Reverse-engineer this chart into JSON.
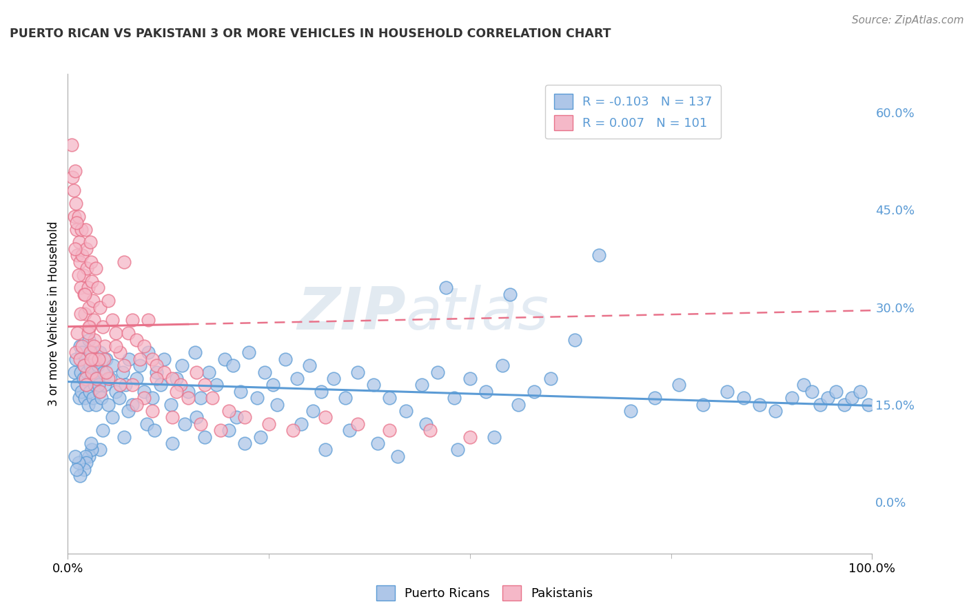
{
  "title": "PUERTO RICAN VS PAKISTANI 3 OR MORE VEHICLES IN HOUSEHOLD CORRELATION CHART",
  "source": "Source: ZipAtlas.com",
  "ylabel": "3 or more Vehicles in Household",
  "watermark_zip": "ZIP",
  "watermark_atlas": "atlas",
  "blue_R": "-0.103",
  "blue_N": "137",
  "pink_R": "0.007",
  "pink_N": "101",
  "blue_fill": "#aec6e8",
  "pink_fill": "#f5b8c8",
  "blue_edge": "#5b9bd5",
  "pink_edge": "#e8728a",
  "blue_line": "#5b9bd5",
  "pink_line": "#e8728a",
  "grid_color": "#cccccc",
  "ytick_color": "#5b9bd5",
  "ytick_values": [
    0.0,
    15.0,
    30.0,
    45.0,
    60.0
  ],
  "ytick_labels": [
    "0.0%",
    "15.0%",
    "30.0%",
    "45.0%",
    "60.0%"
  ],
  "xlim": [
    0.0,
    100.0
  ],
  "ylim": [
    -8.0,
    66.0
  ],
  "blue_line_x": [
    0.0,
    100.0
  ],
  "blue_line_y": [
    18.5,
    14.8
  ],
  "pink_line_x": [
    0.0,
    15.0,
    100.0
  ],
  "pink_line_y": [
    27.0,
    26.5,
    29.5
  ],
  "pink_line_solid_end": 15.0,
  "blue_scatter_x": [
    0.8,
    1.0,
    1.2,
    1.4,
    1.5,
    1.6,
    1.7,
    1.8,
    1.9,
    2.0,
    2.1,
    2.2,
    2.3,
    2.4,
    2.5,
    2.6,
    2.7,
    2.8,
    2.9,
    3.0,
    3.1,
    3.2,
    3.3,
    3.4,
    3.5,
    3.6,
    3.7,
    3.9,
    4.0,
    4.2,
    4.4,
    4.6,
    4.8,
    5.0,
    5.3,
    5.6,
    6.0,
    6.4,
    6.8,
    7.2,
    7.6,
    8.0,
    8.5,
    9.0,
    9.5,
    10.0,
    10.5,
    11.0,
    11.5,
    12.0,
    12.8,
    13.5,
    14.2,
    15.0,
    15.8,
    16.5,
    17.5,
    18.5,
    19.5,
    20.5,
    21.5,
    22.5,
    23.5,
    24.5,
    25.5,
    27.0,
    28.5,
    30.0,
    31.5,
    33.0,
    34.5,
    36.0,
    38.0,
    40.0,
    42.0,
    44.0,
    46.0,
    48.0,
    50.0,
    52.0,
    54.0,
    56.0,
    58.0,
    60.0,
    63.0,
    66.0,
    70.0,
    73.0,
    76.0,
    79.0,
    82.0,
    84.0,
    86.0,
    88.0,
    90.0,
    91.5,
    92.5,
    93.5,
    94.5,
    95.5,
    96.5,
    97.5,
    98.5,
    99.5,
    47.0,
    55.0,
    30.5,
    21.0,
    9.8,
    4.3,
    16.0,
    26.0,
    7.0,
    13.0,
    4.0,
    2.6,
    3.0,
    2.2,
    2.9,
    2.3,
    2.0,
    1.5,
    1.3,
    1.1,
    0.9,
    3.8,
    5.5,
    7.5,
    10.8,
    14.5,
    17.0,
    20.0,
    22.0,
    24.0,
    29.0,
    32.0,
    35.0,
    38.5,
    41.0,
    44.5,
    48.5,
    53.0
  ],
  "blue_scatter_y": [
    20.0,
    22.0,
    18.0,
    16.0,
    24.0,
    20.0,
    17.0,
    23.0,
    19.0,
    21.0,
    16.0,
    22.0,
    18.0,
    20.0,
    15.0,
    25.0,
    17.0,
    21.0,
    19.0,
    23.0,
    16.0,
    20.0,
    18.0,
    22.0,
    15.0,
    19.0,
    21.0,
    17.0,
    23.0,
    16.0,
    20.0,
    18.0,
    22.0,
    15.0,
    19.0,
    21.0,
    17.0,
    16.0,
    20.0,
    18.0,
    22.0,
    15.0,
    19.0,
    21.0,
    17.0,
    23.0,
    16.0,
    20.0,
    18.0,
    22.0,
    15.0,
    19.0,
    21.0,
    17.0,
    23.0,
    16.0,
    20.0,
    18.0,
    22.0,
    21.0,
    17.0,
    23.0,
    16.0,
    20.0,
    18.0,
    22.0,
    19.0,
    21.0,
    17.0,
    19.0,
    16.0,
    20.0,
    18.0,
    16.0,
    14.0,
    18.0,
    20.0,
    16.0,
    19.0,
    17.0,
    21.0,
    15.0,
    17.0,
    19.0,
    25.0,
    38.0,
    14.0,
    16.0,
    18.0,
    15.0,
    17.0,
    16.0,
    15.0,
    14.0,
    16.0,
    18.0,
    17.0,
    15.0,
    16.0,
    17.0,
    15.0,
    16.0,
    17.0,
    15.0,
    33.0,
    32.0,
    14.0,
    13.0,
    12.0,
    11.0,
    13.0,
    15.0,
    10.0,
    9.0,
    8.0,
    7.0,
    8.0,
    7.0,
    9.0,
    6.0,
    5.0,
    4.0,
    6.0,
    5.0,
    7.0,
    18.0,
    13.0,
    14.0,
    11.0,
    12.0,
    10.0,
    11.0,
    9.0,
    10.0,
    12.0,
    8.0,
    11.0,
    9.0,
    7.0,
    12.0,
    8.0,
    10.0
  ],
  "pink_scatter_x": [
    0.5,
    0.6,
    0.7,
    0.8,
    0.9,
    1.0,
    1.1,
    1.2,
    1.3,
    1.4,
    1.5,
    1.6,
    1.7,
    1.8,
    1.9,
    2.0,
    2.1,
    2.2,
    2.3,
    2.4,
    2.5,
    2.6,
    2.7,
    2.8,
    2.9,
    3.0,
    3.1,
    3.2,
    3.3,
    3.5,
    3.7,
    4.0,
    4.3,
    4.6,
    5.0,
    5.5,
    6.0,
    6.5,
    7.0,
    7.5,
    8.0,
    8.5,
    9.0,
    9.5,
    10.0,
    10.5,
    11.0,
    12.0,
    13.0,
    14.0,
    15.0,
    16.0,
    17.0,
    18.0,
    20.0,
    22.0,
    25.0,
    28.0,
    32.0,
    36.0,
    40.0,
    45.0,
    50.0,
    1.0,
    1.2,
    1.5,
    1.8,
    2.0,
    2.2,
    2.5,
    2.8,
    3.0,
    3.3,
    3.6,
    4.0,
    4.5,
    5.0,
    6.0,
    7.0,
    8.0,
    9.5,
    11.0,
    13.5,
    1.3,
    1.6,
    2.1,
    2.6,
    3.2,
    3.8,
    4.8,
    6.5,
    8.5,
    10.5,
    13.0,
    16.5,
    19.0,
    0.9,
    1.1,
    2.3,
    2.9
  ],
  "pink_scatter_y": [
    55.0,
    50.0,
    48.0,
    44.0,
    51.0,
    46.0,
    42.0,
    38.0,
    44.0,
    40.0,
    37.0,
    33.0,
    42.0,
    38.0,
    35.0,
    32.0,
    29.0,
    42.0,
    39.0,
    36.0,
    33.0,
    30.0,
    27.0,
    40.0,
    37.0,
    34.0,
    31.0,
    28.0,
    25.0,
    36.0,
    33.0,
    30.0,
    27.0,
    24.0,
    31.0,
    28.0,
    26.0,
    23.0,
    37.0,
    26.0,
    28.0,
    25.0,
    22.0,
    24.0,
    28.0,
    22.0,
    21.0,
    20.0,
    19.0,
    18.0,
    16.0,
    20.0,
    18.0,
    16.0,
    14.0,
    13.0,
    12.0,
    11.0,
    13.0,
    12.0,
    11.0,
    11.0,
    10.0,
    23.0,
    26.0,
    22.0,
    24.0,
    21.0,
    19.0,
    26.0,
    23.0,
    20.0,
    22.0,
    19.0,
    17.0,
    22.0,
    19.0,
    24.0,
    21.0,
    18.0,
    16.0,
    19.0,
    17.0,
    35.0,
    29.0,
    32.0,
    27.0,
    24.0,
    22.0,
    20.0,
    18.0,
    15.0,
    14.0,
    13.0,
    12.0,
    11.0,
    39.0,
    43.0,
    18.0,
    22.0
  ]
}
